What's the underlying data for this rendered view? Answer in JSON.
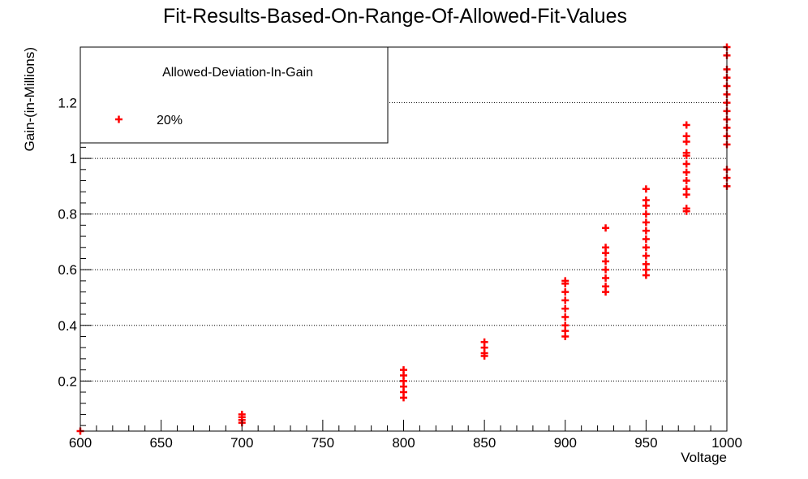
{
  "chart_data": {
    "type": "scatter",
    "title": "Fit-Results-Based-On-Range-Of-Allowed-Fit-Values",
    "xlabel": "Voltage",
    "ylabel": "Gain-(in-Millions)",
    "xlim": [
      600,
      1000
    ],
    "ylim": [
      0.02,
      1.4
    ],
    "x_ticks": [
      600,
      650,
      700,
      750,
      800,
      850,
      900,
      950,
      1000
    ],
    "y_ticks": [
      0.2,
      0.4,
      0.6,
      0.8,
      1,
      1.2
    ],
    "x_tick_labels": [
      "600",
      "650",
      "700",
      "750",
      "800",
      "850",
      "900",
      "950",
      "1000"
    ],
    "y_tick_labels": [
      "0.2",
      "0.4",
      "0.6",
      "0.8",
      "1",
      "1.2"
    ],
    "grid": "horizontal dotted",
    "legend": {
      "header": "Allowed-Deviation-In-Gain",
      "placement": "top-left",
      "entries": [
        "20%"
      ]
    },
    "series": [
      {
        "name": "20%",
        "color": "#ff0000",
        "marker": "plus",
        "points": [
          {
            "x": 600,
            "y": 0.02
          },
          {
            "x": 700,
            "y": 0.05
          },
          {
            "x": 700,
            "y": 0.06
          },
          {
            "x": 700,
            "y": 0.07
          },
          {
            "x": 700,
            "y": 0.08
          },
          {
            "x": 800,
            "y": 0.14
          },
          {
            "x": 800,
            "y": 0.16
          },
          {
            "x": 800,
            "y": 0.18
          },
          {
            "x": 800,
            "y": 0.2
          },
          {
            "x": 800,
            "y": 0.22
          },
          {
            "x": 800,
            "y": 0.24
          },
          {
            "x": 850,
            "y": 0.29
          },
          {
            "x": 850,
            "y": 0.3
          },
          {
            "x": 850,
            "y": 0.32
          },
          {
            "x": 850,
            "y": 0.34
          },
          {
            "x": 900,
            "y": 0.36
          },
          {
            "x": 900,
            "y": 0.38
          },
          {
            "x": 900,
            "y": 0.4
          },
          {
            "x": 900,
            "y": 0.43
          },
          {
            "x": 900,
            "y": 0.46
          },
          {
            "x": 900,
            "y": 0.49
          },
          {
            "x": 900,
            "y": 0.52
          },
          {
            "x": 900,
            "y": 0.55
          },
          {
            "x": 900,
            "y": 0.56
          },
          {
            "x": 925,
            "y": 0.52
          },
          {
            "x": 925,
            "y": 0.54
          },
          {
            "x": 925,
            "y": 0.57
          },
          {
            "x": 925,
            "y": 0.6
          },
          {
            "x": 925,
            "y": 0.63
          },
          {
            "x": 925,
            "y": 0.66
          },
          {
            "x": 925,
            "y": 0.68
          },
          {
            "x": 925,
            "y": 0.75
          },
          {
            "x": 950,
            "y": 0.58
          },
          {
            "x": 950,
            "y": 0.6
          },
          {
            "x": 950,
            "y": 0.62
          },
          {
            "x": 950,
            "y": 0.65
          },
          {
            "x": 950,
            "y": 0.68
          },
          {
            "x": 950,
            "y": 0.71
          },
          {
            "x": 950,
            "y": 0.74
          },
          {
            "x": 950,
            "y": 0.77
          },
          {
            "x": 950,
            "y": 0.8
          },
          {
            "x": 950,
            "y": 0.83
          },
          {
            "x": 950,
            "y": 0.85
          },
          {
            "x": 950,
            "y": 0.89
          },
          {
            "x": 975,
            "y": 0.81
          },
          {
            "x": 975,
            "y": 0.82
          },
          {
            "x": 975,
            "y": 0.87
          },
          {
            "x": 975,
            "y": 0.89
          },
          {
            "x": 975,
            "y": 0.92
          },
          {
            "x": 975,
            "y": 0.95
          },
          {
            "x": 975,
            "y": 0.98
          },
          {
            "x": 975,
            "y": 1.01
          },
          {
            "x": 975,
            "y": 1.02
          },
          {
            "x": 975,
            "y": 1.06
          },
          {
            "x": 975,
            "y": 1.08
          },
          {
            "x": 975,
            "y": 1.12
          },
          {
            "x": 1000,
            "y": 0.9
          },
          {
            "x": 1000,
            "y": 0.93
          },
          {
            "x": 1000,
            "y": 0.96
          },
          {
            "x": 1000,
            "y": 1.05
          },
          {
            "x": 1000,
            "y": 1.08
          },
          {
            "x": 1000,
            "y": 1.11
          },
          {
            "x": 1000,
            "y": 1.14
          },
          {
            "x": 1000,
            "y": 1.17
          },
          {
            "x": 1000,
            "y": 1.2
          },
          {
            "x": 1000,
            "y": 1.23
          },
          {
            "x": 1000,
            "y": 1.26
          },
          {
            "x": 1000,
            "y": 1.29
          },
          {
            "x": 1000,
            "y": 1.32
          },
          {
            "x": 1000,
            "y": 1.37
          },
          {
            "x": 1000,
            "y": 1.4
          }
        ]
      }
    ]
  }
}
